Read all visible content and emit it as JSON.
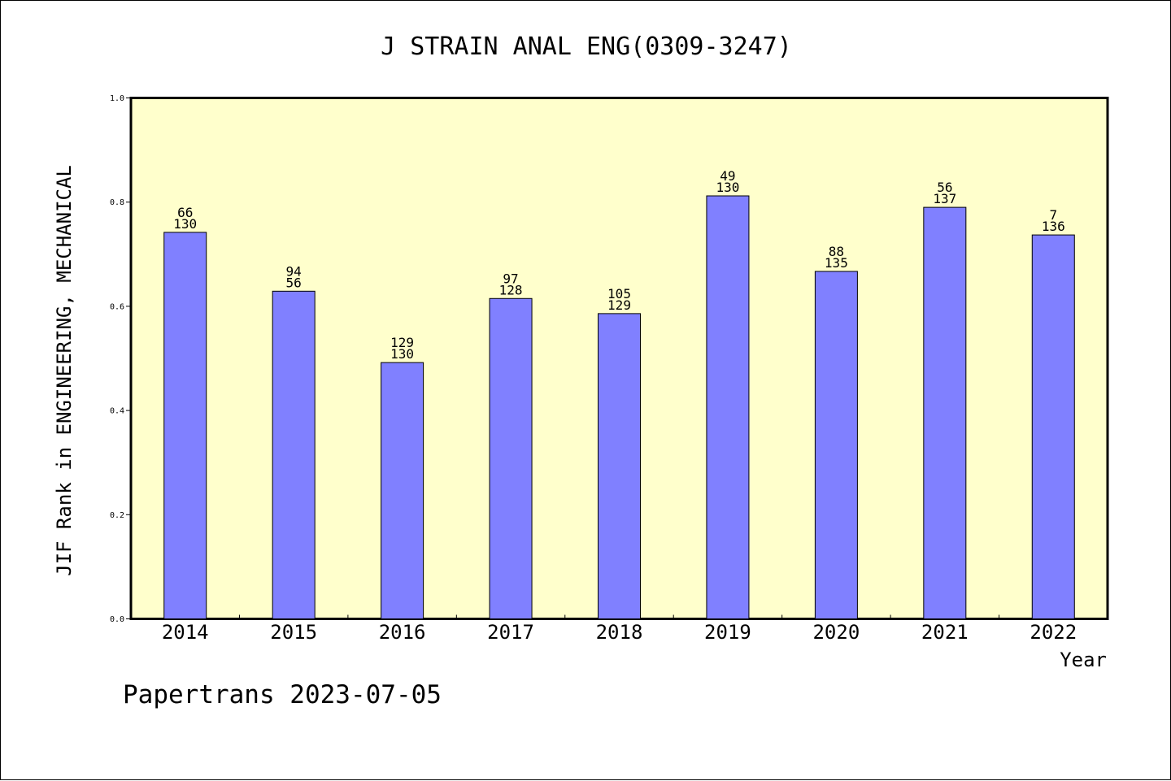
{
  "chart_data": {
    "type": "bar",
    "title": "J STRAIN ANAL ENG(0309-3247)",
    "xlabel": "Year",
    "ylabel": "JIF Rank in ENGINEERING, MECHANICAL",
    "categories": [
      "2014",
      "2015",
      "2016",
      "2017",
      "2018",
      "2019",
      "2020",
      "2021",
      "2022"
    ],
    "values": [
      0.742,
      0.629,
      0.492,
      0.615,
      0.586,
      0.812,
      0.667,
      0.79,
      0.737
    ],
    "data_labels": [
      [
        "66",
        "130"
      ],
      [
        "94",
        "56"
      ],
      [
        "129",
        "130"
      ],
      [
        "97",
        "128"
      ],
      [
        "105",
        "129"
      ],
      [
        "49",
        "130"
      ],
      [
        "88",
        "135"
      ],
      [
        "56",
        "137"
      ],
      [
        "7",
        "136"
      ]
    ],
    "ylim": [
      0,
      1.0
    ],
    "yticks": [
      "0.0",
      "0.2",
      "0.4",
      "0.6",
      "0.8",
      "1.0"
    ],
    "grid": false,
    "colors": {
      "bar": "#8080ff",
      "plot_background": "#ffffcc",
      "axis": "#000000"
    }
  },
  "footer": "Papertrans 2023-07-05"
}
